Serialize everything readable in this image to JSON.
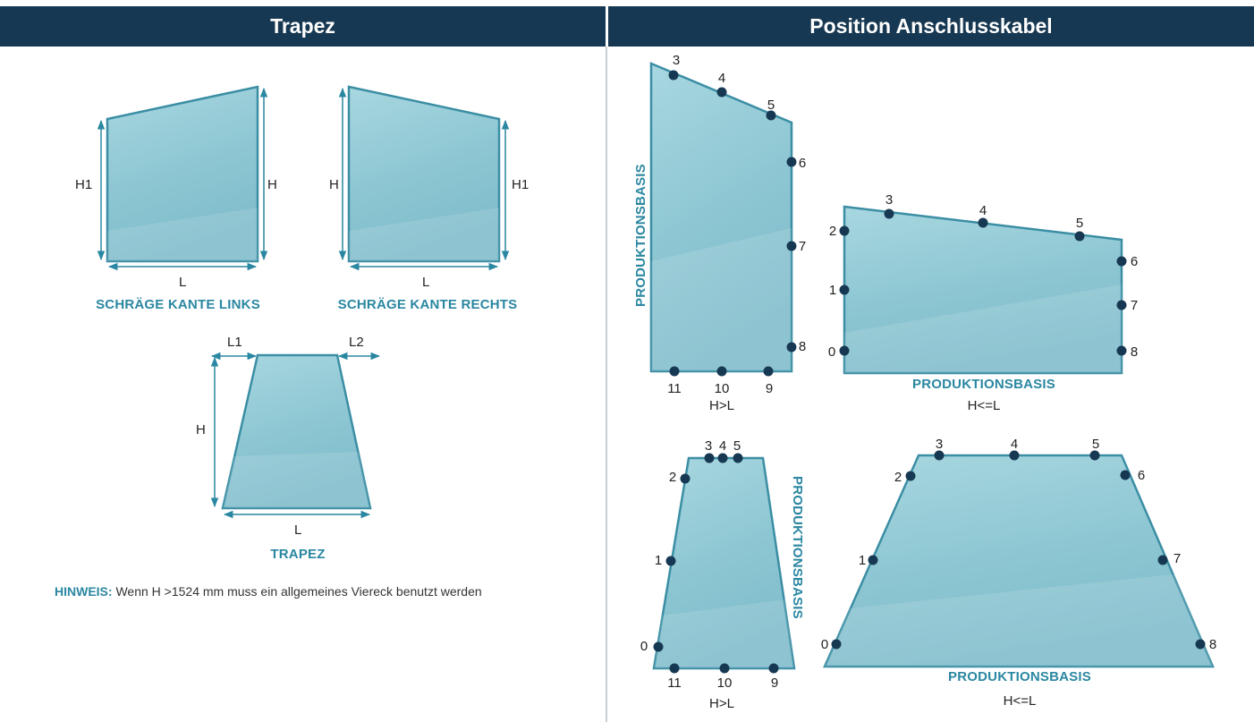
{
  "headers": {
    "left": "Trapez",
    "right": "Position Anschlusskabel"
  },
  "shapes_left": {
    "schraege_links": {
      "caption": "SCHRÄGE KANTE LINKS",
      "h1": "H1",
      "h": "H",
      "l": "L"
    },
    "schraege_rechts": {
      "caption": "SCHRÄGE KANTE RECHTS",
      "h": "H",
      "h1": "H1",
      "l": "L"
    },
    "trapez": {
      "caption": "TRAPEZ",
      "l1": "L1",
      "l2": "L2",
      "h": "H",
      "l": "L"
    }
  },
  "note": {
    "label": "HINWEIS:",
    "text": " Wenn H >1524 mm muss ein allgemeines Viereck benutzt werden"
  },
  "positions": {
    "tall_slanted": {
      "base": "PRODUKTIONSBASIS",
      "cond": "H>L",
      "points": [
        "3",
        "4",
        "5",
        "6",
        "7",
        "8",
        "9",
        "10",
        "11"
      ]
    },
    "wide_slanted": {
      "base": "PRODUKTIONSBASIS",
      "cond": "H<=L",
      "points": [
        "0",
        "1",
        "2",
        "3",
        "4",
        "5",
        "6",
        "7",
        "8"
      ]
    },
    "tall_trapez": {
      "base": "PRODUKTIONSBASIS",
      "cond": "H>L",
      "points": [
        "0",
        "1",
        "2",
        "3",
        "4",
        "5",
        "9",
        "10",
        "11"
      ]
    },
    "wide_trapez": {
      "base": "PRODUKTIONSBASIS",
      "cond": "H<=L",
      "points": [
        "0",
        "1",
        "2",
        "3",
        "4",
        "5",
        "6",
        "7",
        "8"
      ]
    }
  },
  "colors": {
    "header_bg": "#173852",
    "glass": "#9fd3dd",
    "glass_edge": "#3b8ea4",
    "dot": "#173852",
    "accent": "#2a87a1"
  }
}
